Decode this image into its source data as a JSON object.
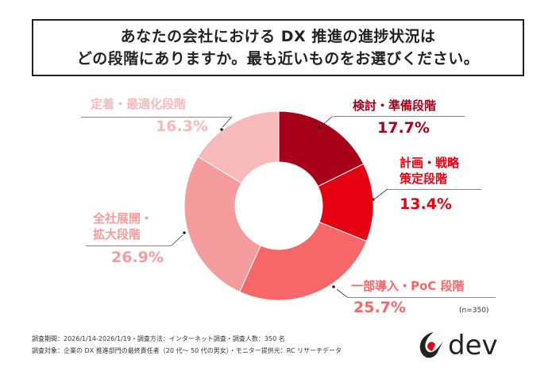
{
  "title": {
    "line1": "あなたの会社における DX 推進の進捗状況は",
    "line2": "どの段階にありますか。最も近いものをお選びください。"
  },
  "chart_data": {
    "type": "pie",
    "donut": true,
    "categories": [
      "検討・準備段階",
      "計画・戦略策定段階",
      "一部導入・PoC 段階",
      "全社展開・拡大段階",
      "定着・最適化段階"
    ],
    "label_lines": [
      [
        "検討・準備段階"
      ],
      [
        "計画・戦略",
        "策定段階"
      ],
      [
        "一部導入・PoC 段階"
      ],
      [
        "全社展開・",
        "拡大段階"
      ],
      [
        "定着・最適化段階"
      ]
    ],
    "values": [
      17.7,
      13.4,
      25.7,
      26.9,
      16.3
    ],
    "value_labels": [
      "17.7%",
      "13.4%",
      "25.7%",
      "26.9%",
      "16.3%"
    ],
    "colors": [
      "#a8001b",
      "#e50012",
      "#f76767",
      "#f59d9d",
      "#f7baba"
    ],
    "label_colors": [
      "#a8001b",
      "#e50012",
      "#f76767",
      "#f59d9d",
      "#f7baba"
    ],
    "sample": "(n=350)"
  },
  "footer": {
    "line1": "調査期間：2026/1/14-2026/1/19・調査方法：インターネット調査・調査人数：350 名",
    "line2": "調査対象：企業の DX 推進部門の最終責任者（20 代～ 50 代の男女）・モニター提供元：RC リサーチデータ"
  },
  "logo": {
    "text": "dev"
  }
}
